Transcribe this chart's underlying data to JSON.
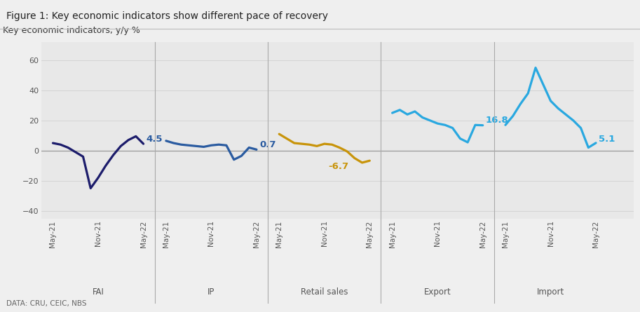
{
  "title": "Figure 1: Key economic indicators show different pace of recovery",
  "ylabel": "Key economic indicators, y/y %",
  "source": "DATA: CRU, CEIC, NBS",
  "ylim": [
    -45,
    72
  ],
  "yticks": [
    -40,
    -20,
    0,
    20,
    40,
    60
  ],
  "plot_bg": "#e8e8e8",
  "fig_bg": "#efefef",
  "title_color": "#222222",
  "axis_color": "#555555",
  "grid_color": "#cccccc",
  "divider_color": "#aaaaaa",
  "fai_color": "#1c1c6b",
  "ip_color": "#2a5ba0",
  "retail_color": "#c8940a",
  "export_color": "#29a8e0",
  "import_color": "#29a8e0",
  "label_fai_color": "#2a5ba0",
  "label_ip_color": "#2a5ba0",
  "label_retail_color": "#c8940a",
  "label_export_color": "#29a8e0",
  "label_import_color": "#29a8e0",
  "fai_y": [
    5.0,
    4.0,
    2.0,
    -1.0,
    -4.0,
    -25.0,
    -18.0,
    -10.0,
    -3.0,
    3.0,
    7.0,
    9.5,
    4.5
  ],
  "ip_y": [
    6.5,
    5.0,
    4.0,
    3.5,
    3.0,
    2.5,
    3.5,
    4.0,
    3.5,
    -6.0,
    -3.5,
    2.0,
    0.7
  ],
  "retail_y": [
    11.0,
    8.0,
    5.0,
    4.5,
    4.0,
    3.0,
    4.5,
    4.0,
    2.0,
    -0.5,
    -5.0,
    -8.0,
    -6.7
  ],
  "export_y": [
    25.0,
    27.0,
    24.0,
    26.0,
    22.0,
    20.0,
    18.0,
    17.0,
    15.0,
    8.0,
    5.5,
    17.0,
    16.8
  ],
  "import_y": [
    17.0,
    23.0,
    31.0,
    38.0,
    55.0,
    44.0,
    33.0,
    28.0,
    24.0,
    20.0,
    15.0,
    2.0,
    5.1
  ],
  "section_names": [
    "FAI",
    "IP",
    "Retail sales",
    "Export",
    "Import"
  ],
  "tick_labels": [
    "May-21",
    "Nov-21",
    "May-22"
  ]
}
